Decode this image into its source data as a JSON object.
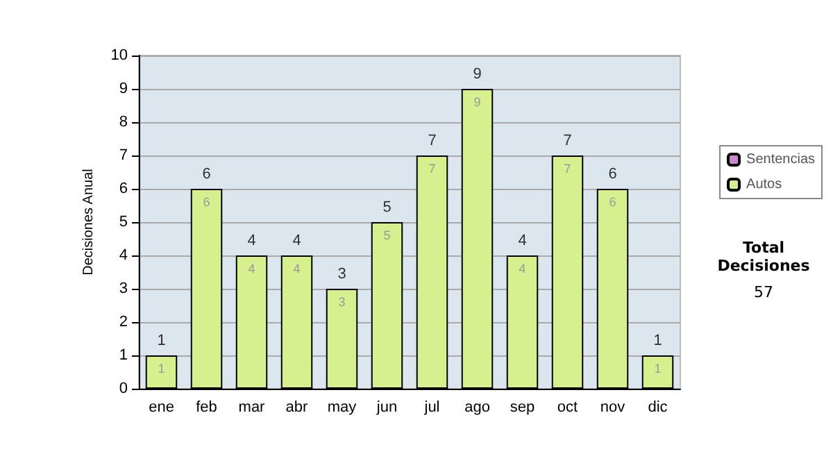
{
  "chart_data": {
    "type": "bar",
    "stacked": true,
    "ylabel": "Decisiones Anual",
    "categories": [
      "ene",
      "feb",
      "mar",
      "abr",
      "may",
      "jun",
      "jul",
      "ago",
      "sep",
      "oct",
      "nov",
      "dic"
    ],
    "series": [
      {
        "name": "Sentencias",
        "color": "#cc88cc",
        "values": [
          0,
          0,
          0,
          0,
          0,
          0,
          0,
          0,
          0,
          0,
          0,
          0
        ]
      },
      {
        "name": "Autos",
        "color": "#d6f090",
        "values": [
          1,
          6,
          4,
          4,
          3,
          5,
          7,
          9,
          4,
          7,
          6,
          1
        ],
        "value_labels": [
          "1",
          "6",
          "4",
          "4",
          "3",
          "5",
          "7",
          "9",
          "4",
          "7",
          "6",
          "1"
        ]
      }
    ],
    "totals": [
      "1",
      "6",
      "4",
      "4",
      "3",
      "5",
      "7",
      "9",
      "4",
      "7",
      "6",
      "1"
    ],
    "ylim": [
      0,
      10
    ],
    "yticks": [
      0,
      1,
      2,
      3,
      4,
      5,
      6,
      7,
      8,
      9,
      10
    ],
    "grid": "y",
    "legend": "right",
    "annotations": [
      "Total Decisiones",
      "57"
    ]
  }
}
